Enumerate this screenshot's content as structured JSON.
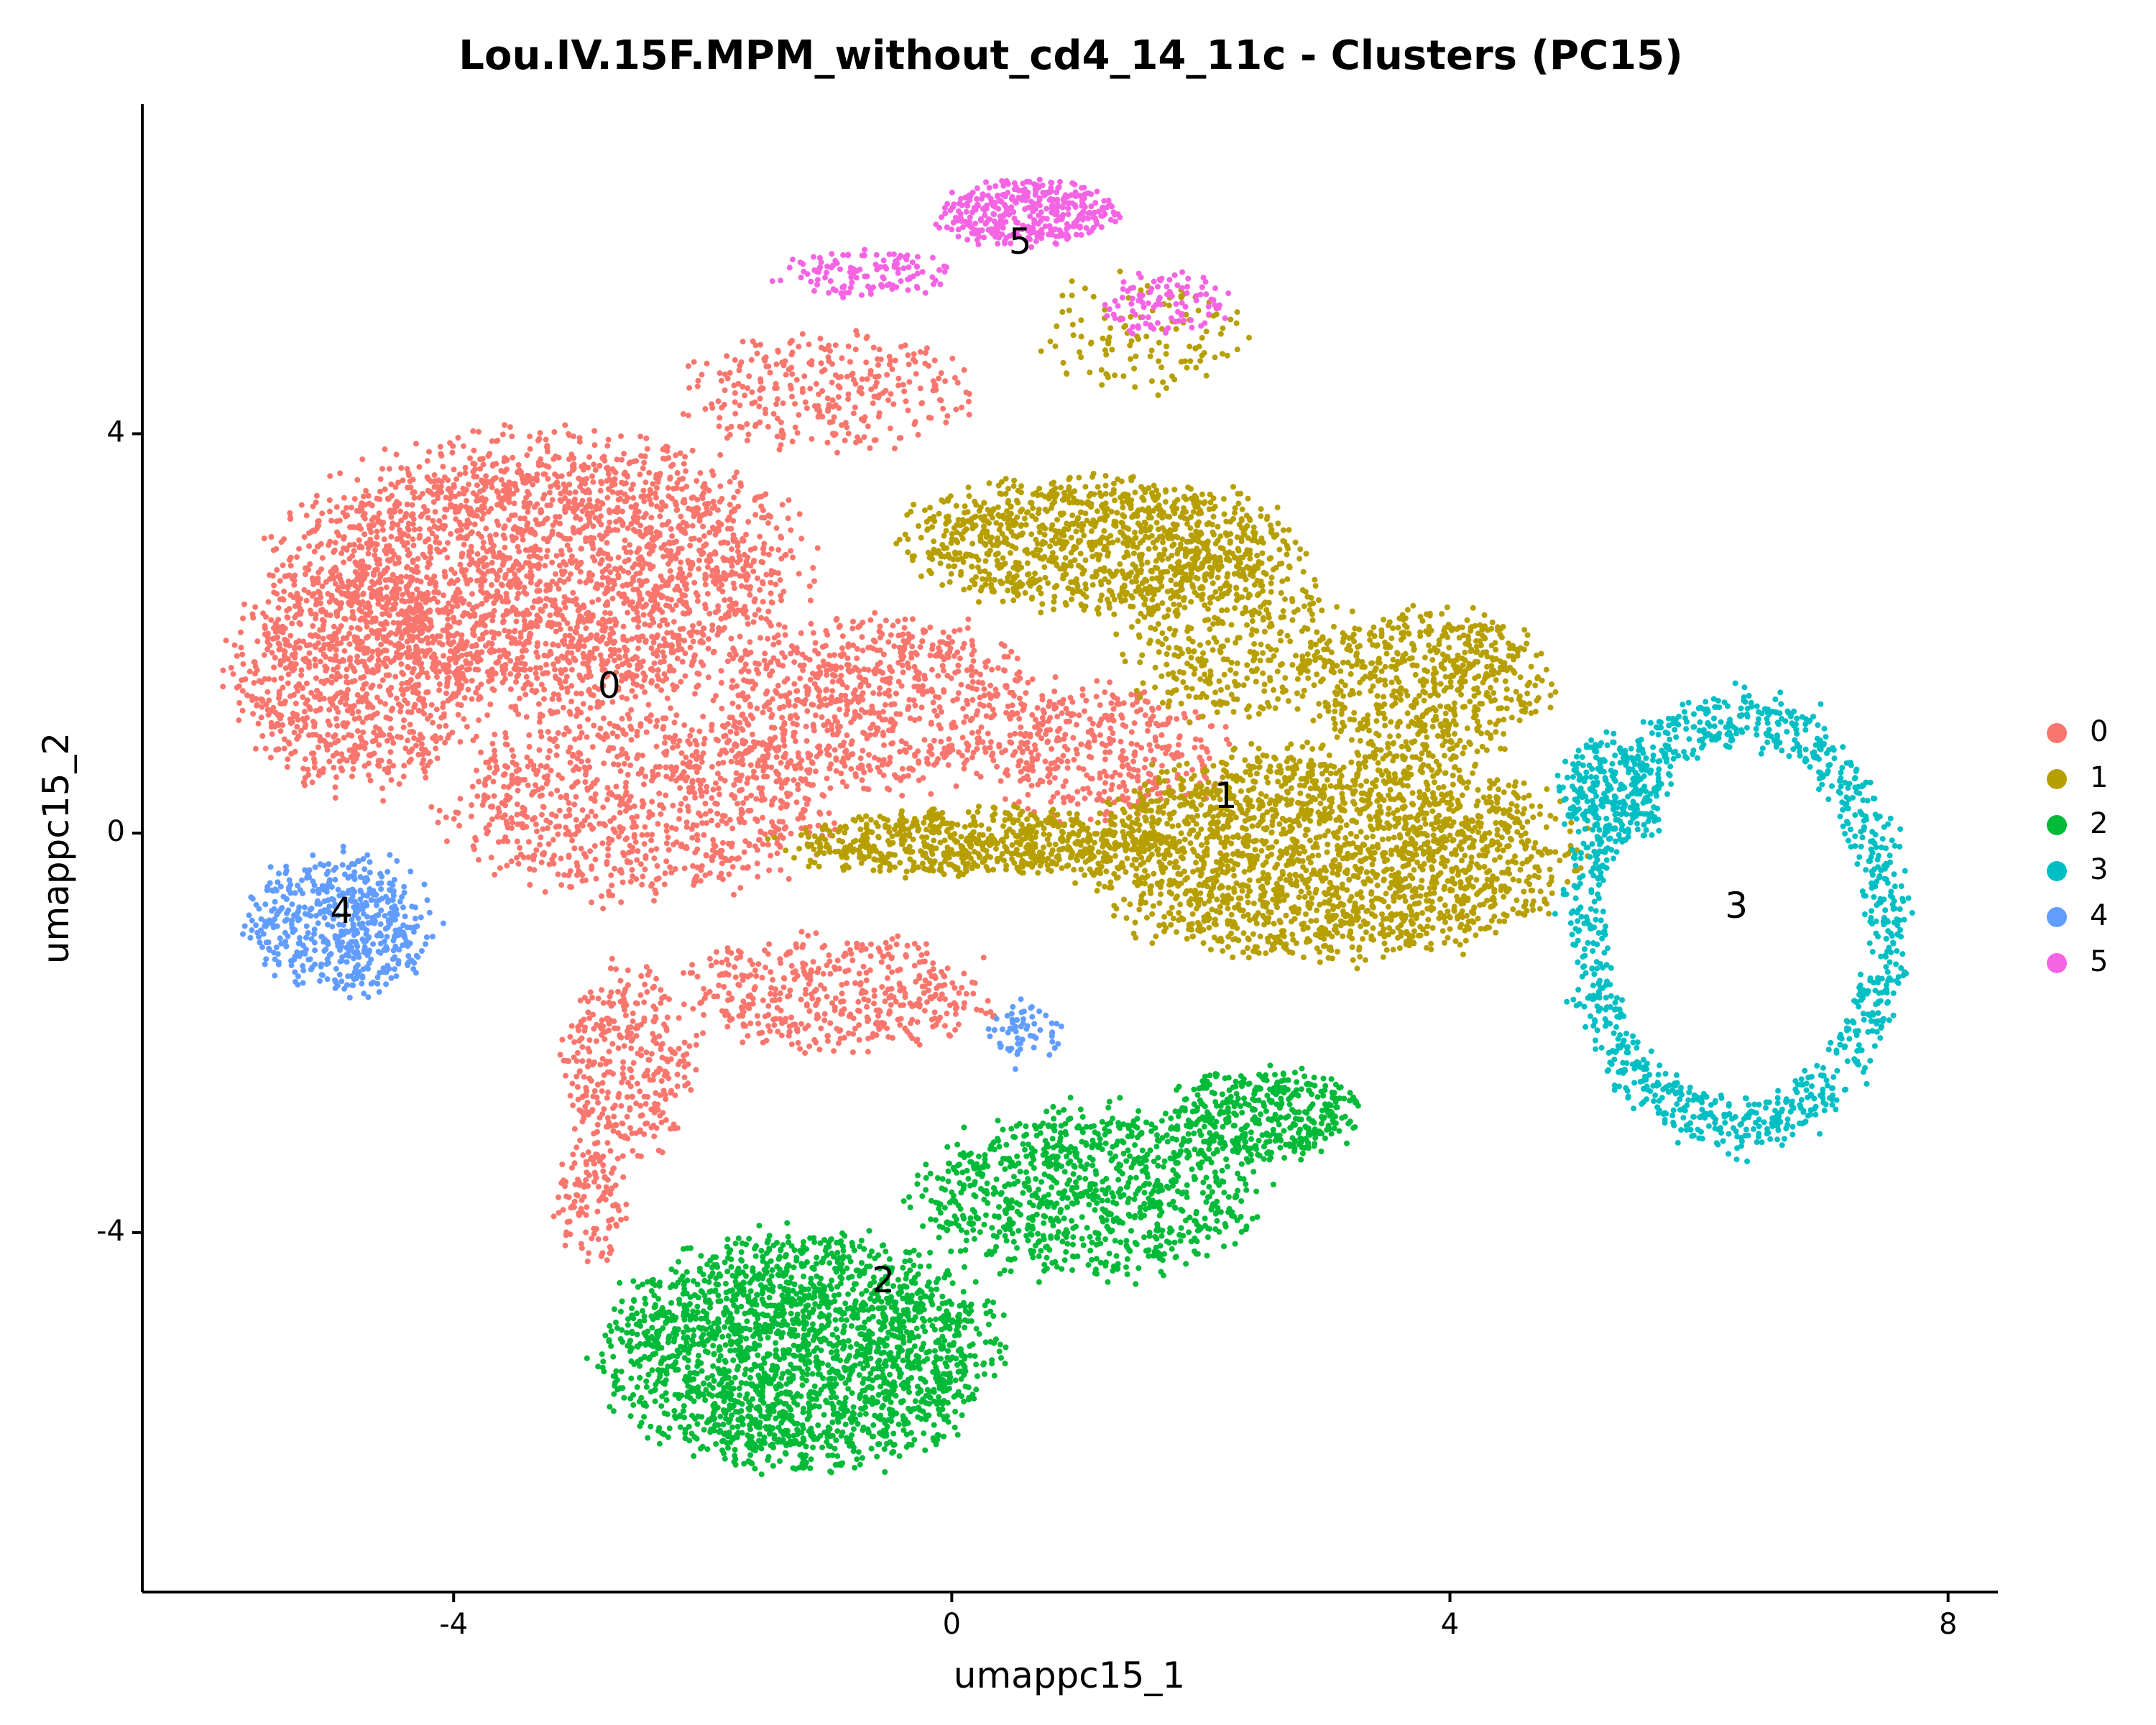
{
  "chart_data": {
    "type": "scatter",
    "title": "Lou.IV.15F.MPM_without_cd4_14_11c - Clusters (PC15)",
    "xlabel": "umappc15_1",
    "ylabel": "umappc15_2",
    "xlim": [
      -6.5,
      8.4
    ],
    "ylim": [
      -7.6,
      7.3
    ],
    "xticks": [
      -4,
      0,
      4,
      8
    ],
    "xtick_labels": [
      "-4",
      "0",
      "4",
      "8"
    ],
    "yticks": [
      -4,
      0,
      4
    ],
    "ytick_labels": [
      "-4",
      "0",
      "4"
    ],
    "grid": false,
    "legend_position": "right",
    "legend_title": "",
    "series": [
      {
        "name": "0",
        "color": "#F8766D",
        "label_at": [
          -2.75,
          1.45
        ],
        "blobs": [
          {
            "cx": -3.3,
            "cy": 2.6,
            "rx": 2.1,
            "ry": 1.4,
            "n": 2600
          },
          {
            "cx": -4.8,
            "cy": 1.6,
            "rx": 1.0,
            "ry": 1.2,
            "n": 900
          },
          {
            "cx": -2.5,
            "cy": 0.3,
            "rx": 1.6,
            "ry": 1.0,
            "n": 900
          },
          {
            "cx": -0.6,
            "cy": 1.3,
            "rx": 1.4,
            "ry": 0.9,
            "n": 800
          },
          {
            "cx": 1.2,
            "cy": 0.8,
            "rx": 1.0,
            "ry": 0.7,
            "n": 400
          },
          {
            "cx": -1.0,
            "cy": 4.4,
            "rx": 1.2,
            "ry": 0.6,
            "n": 300
          },
          {
            "cx": -2.6,
            "cy": -2.3,
            "rx": 0.55,
            "ry": 1.0,
            "n": 350
          },
          {
            "cx": -2.9,
            "cy": -3.7,
            "rx": 0.3,
            "ry": 0.6,
            "n": 120
          },
          {
            "cx": -0.9,
            "cy": -1.6,
            "rx": 1.3,
            "ry": 0.6,
            "n": 450
          }
        ]
      },
      {
        "name": "1",
        "color": "#B79F00",
        "label_at": [
          2.2,
          0.35
        ],
        "blobs": [
          {
            "cx": 3.0,
            "cy": -0.2,
            "rx": 2.0,
            "ry": 1.1,
            "n": 2200
          },
          {
            "cx": 1.2,
            "cy": 2.9,
            "rx": 1.6,
            "ry": 0.7,
            "n": 1100
          },
          {
            "cx": 3.8,
            "cy": 1.5,
            "rx": 1.0,
            "ry": 0.8,
            "n": 600
          },
          {
            "cx": 0.2,
            "cy": -0.1,
            "rx": 1.6,
            "ry": 0.35,
            "n": 700
          },
          {
            "cx": 1.5,
            "cy": 5.0,
            "rx": 0.9,
            "ry": 0.6,
            "n": 120
          },
          {
            "cx": 2.2,
            "cy": 2.0,
            "rx": 0.9,
            "ry": 0.9,
            "n": 400
          }
        ]
      },
      {
        "name": "2",
        "color": "#00BA38",
        "label_at": [
          -0.55,
          -4.5
        ],
        "blobs": [
          {
            "cx": -1.2,
            "cy": -5.2,
            "rx": 1.6,
            "ry": 1.2,
            "n": 2200
          },
          {
            "cx": 1.1,
            "cy": -3.6,
            "rx": 1.4,
            "ry": 0.9,
            "n": 900
          },
          {
            "cx": 2.5,
            "cy": -2.8,
            "rx": 0.8,
            "ry": 0.5,
            "n": 400
          }
        ]
      },
      {
        "name": "3",
        "color": "#00BFC4",
        "label_at": [
          6.3,
          -0.75
        ],
        "blobs": [
          {
            "cx": 6.3,
            "cy": -0.9,
            "rx": 1.3,
            "ry": 2.2,
            "n": 1100,
            "ring": 0.78
          },
          {
            "cx": 5.3,
            "cy": 0.4,
            "rx": 0.45,
            "ry": 0.6,
            "n": 250
          }
        ]
      },
      {
        "name": "4",
        "color": "#619CFF",
        "label_at": [
          -4.9,
          -0.8
        ],
        "blobs": [
          {
            "cx": -4.9,
            "cy": -0.9,
            "rx": 0.75,
            "ry": 0.75,
            "n": 520
          },
          {
            "cx": 0.6,
            "cy": -2.0,
            "rx": 0.3,
            "ry": 0.35,
            "n": 60
          }
        ]
      },
      {
        "name": "5",
        "color": "#F564E3",
        "label_at": [
          0.55,
          5.9
        ],
        "blobs": [
          {
            "cx": 0.6,
            "cy": 6.2,
            "rx": 0.75,
            "ry": 0.35,
            "n": 380
          },
          {
            "cx": -0.7,
            "cy": 5.6,
            "rx": 0.75,
            "ry": 0.25,
            "n": 120
          },
          {
            "cx": 1.7,
            "cy": 5.3,
            "rx": 0.6,
            "ry": 0.3,
            "n": 100
          }
        ]
      }
    ]
  }
}
